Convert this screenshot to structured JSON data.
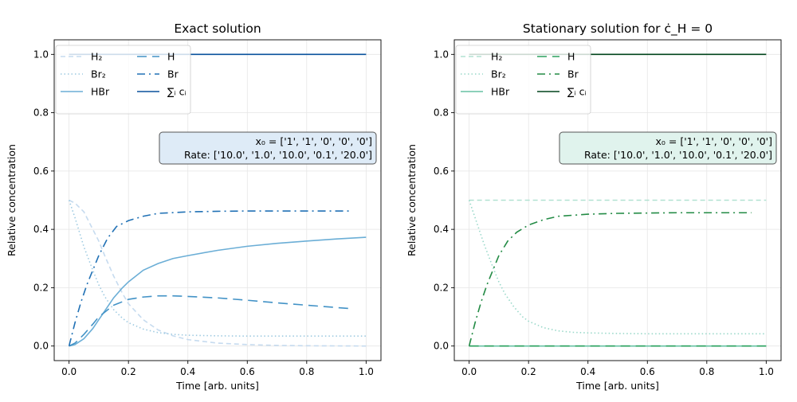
{
  "chart_data": [
    {
      "type": "line",
      "title": "Exact solution",
      "xlabel": "Time [arb. units]",
      "ylabel": "Relative concentration",
      "xlim": [
        -0.05,
        1.05
      ],
      "ylim": [
        -0.05,
        1.05
      ],
      "xticks": [
        "0.0",
        "0.2",
        "0.4",
        "0.6",
        "0.8",
        "1.0"
      ],
      "yticks": [
        "0.0",
        "0.2",
        "0.4",
        "0.6",
        "0.8",
        "1.0"
      ],
      "grid": true,
      "legend_placement": "upper-left",
      "annotation": {
        "line1": "x₀ = ['1', '1', '0', '0', '0']",
        "line2": "Rate: ['10.0', '1.0', '10.0', '0.1', '20.0']",
        "background": "#deebf7",
        "border": "#555555"
      },
      "series": [
        {
          "name": "H₂",
          "color": "#c6dbef",
          "dash": "dashed",
          "x": [
            0,
            0.02,
            0.05,
            0.08,
            0.1,
            0.12,
            0.15,
            0.18,
            0.2,
            0.25,
            0.3,
            0.35,
            0.4,
            0.5,
            0.6,
            0.7,
            0.8,
            0.9,
            1.0
          ],
          "y": [
            0.5,
            0.49,
            0.46,
            0.4,
            0.36,
            0.31,
            0.24,
            0.18,
            0.145,
            0.09,
            0.055,
            0.035,
            0.022,
            0.01,
            0.005,
            0.002,
            0.001,
            0.0005,
            0.0
          ]
        },
        {
          "name": "Br₂",
          "color": "#9ecae1",
          "dash": "dotted",
          "x": [
            0,
            0.02,
            0.05,
            0.08,
            0.1,
            0.12,
            0.15,
            0.18,
            0.2,
            0.25,
            0.3,
            0.35,
            0.4,
            0.5,
            0.6,
            0.7,
            0.8,
            0.9,
            1.0
          ],
          "y": [
            0.5,
            0.44,
            0.34,
            0.26,
            0.21,
            0.17,
            0.125,
            0.095,
            0.08,
            0.058,
            0.046,
            0.04,
            0.037,
            0.035,
            0.034,
            0.034,
            0.034,
            0.034,
            0.034
          ]
        },
        {
          "name": "HBr",
          "color": "#6baed6",
          "dash": "solid",
          "x": [
            0,
            0.02,
            0.05,
            0.08,
            0.1,
            0.12,
            0.15,
            0.18,
            0.2,
            0.25,
            0.3,
            0.35,
            0.4,
            0.5,
            0.6,
            0.7,
            0.8,
            0.9,
            1.0
          ],
          "y": [
            0.0,
            0.005,
            0.025,
            0.06,
            0.09,
            0.12,
            0.165,
            0.2,
            0.22,
            0.26,
            0.283,
            0.3,
            0.31,
            0.328,
            0.342,
            0.352,
            0.36,
            0.367,
            0.373
          ]
        },
        {
          "name": "H",
          "color": "#4292c6",
          "dash": "longdash",
          "x": [
            0,
            0.02,
            0.05,
            0.08,
            0.1,
            0.15,
            0.2,
            0.25,
            0.3,
            0.35,
            0.4,
            0.5,
            0.6,
            0.7,
            0.8,
            0.9,
            0.95
          ],
          "y": [
            0.0,
            0.01,
            0.04,
            0.075,
            0.1,
            0.14,
            0.16,
            0.168,
            0.172,
            0.172,
            0.17,
            0.165,
            0.157,
            0.148,
            0.14,
            0.132,
            0.128
          ]
        },
        {
          "name": "Br",
          "color": "#2171b5",
          "dash": "dashdot",
          "x": [
            0,
            0.02,
            0.04,
            0.06,
            0.08,
            0.1,
            0.13,
            0.16,
            0.2,
            0.25,
            0.3,
            0.4,
            0.5,
            0.6,
            0.7,
            0.8,
            0.9,
            0.95
          ],
          "y": [
            0.0,
            0.08,
            0.15,
            0.21,
            0.26,
            0.31,
            0.37,
            0.41,
            0.43,
            0.445,
            0.455,
            0.46,
            0.462,
            0.463,
            0.463,
            0.463,
            0.463,
            0.463
          ]
        },
        {
          "name": "∑ᵢ cᵢ",
          "color": "#08519c",
          "dash": "solid",
          "x": [
            0,
            1.0
          ],
          "y": [
            1.0,
            1.0
          ]
        }
      ]
    },
    {
      "type": "line",
      "title": "Stationary solution for ċ_H = 0",
      "xlabel": "Time [arb. units]",
      "ylabel": "Relative concentration",
      "xlim": [
        -0.05,
        1.05
      ],
      "ylim": [
        -0.05,
        1.05
      ],
      "xticks": [
        "0.0",
        "0.2",
        "0.4",
        "0.6",
        "0.8",
        "1.0"
      ],
      "yticks": [
        "0.0",
        "0.2",
        "0.4",
        "0.6",
        "0.8",
        "1.0"
      ],
      "grid": true,
      "legend_placement": "upper-left",
      "annotation": {
        "line1": "x₀ = ['1', '1', '0', '0', '0']",
        "line2": "Rate: ['10.0', '1.0', '10.0', '0.1', '20.0']",
        "background": "#e0f3ed",
        "border": "#555555"
      },
      "series": [
        {
          "name": "H₂",
          "color": "#b2e2d2",
          "dash": "dashed",
          "x": [
            0,
            1.0
          ],
          "y": [
            0.5,
            0.5
          ]
        },
        {
          "name": "Br₂",
          "color": "#99d8c9",
          "dash": "dotted",
          "x": [
            0,
            0.02,
            0.05,
            0.08,
            0.1,
            0.12,
            0.15,
            0.18,
            0.2,
            0.25,
            0.3,
            0.35,
            0.4,
            0.5,
            0.6,
            0.7,
            0.8,
            0.9,
            1.0
          ],
          "y": [
            0.5,
            0.44,
            0.35,
            0.27,
            0.22,
            0.18,
            0.135,
            0.1,
            0.085,
            0.063,
            0.052,
            0.047,
            0.045,
            0.043,
            0.042,
            0.042,
            0.042,
            0.042,
            0.042
          ]
        },
        {
          "name": "HBr",
          "color": "#66c2a4",
          "dash": "solid",
          "x": [
            0,
            1.0
          ],
          "y": [
            0.0,
            0.0
          ]
        },
        {
          "name": "H",
          "color": "#2ca25f",
          "dash": "longdash",
          "x": [
            0,
            1.0
          ],
          "y": [
            0.0,
            0.0
          ]
        },
        {
          "name": "Br",
          "color": "#238b45",
          "dash": "dashdot",
          "x": [
            0,
            0.02,
            0.04,
            0.06,
            0.08,
            0.1,
            0.13,
            0.16,
            0.2,
            0.25,
            0.3,
            0.4,
            0.5,
            0.6,
            0.7,
            0.8,
            0.9,
            0.95
          ],
          "y": [
            0.0,
            0.08,
            0.15,
            0.21,
            0.26,
            0.31,
            0.36,
            0.39,
            0.415,
            0.433,
            0.445,
            0.452,
            0.455,
            0.456,
            0.457,
            0.457,
            0.457,
            0.457
          ]
        },
        {
          "name": "∑ᵢ cᵢ",
          "color": "#00441b",
          "dash": "solid",
          "x": [
            0,
            1.0
          ],
          "y": [
            1.0,
            1.0
          ]
        }
      ]
    }
  ]
}
